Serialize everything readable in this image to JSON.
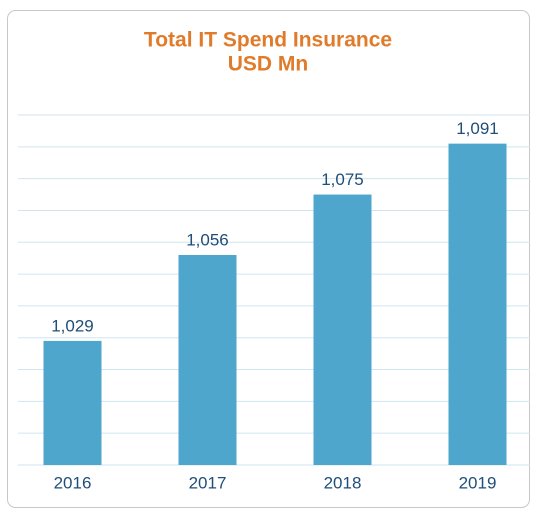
{
  "chart_data": {
    "type": "bar",
    "title": "Total IT Spend Insurance",
    "subtitle": "USD Mn",
    "categories": [
      "2016",
      "2017",
      "2018",
      "2019"
    ],
    "values": [
      1029,
      1056,
      1075,
      1091
    ],
    "value_labels": [
      "1,029",
      "1,056",
      "1,075",
      "1,091"
    ],
    "color": "#4fa6cc",
    "ylim": [
      990,
      1100
    ],
    "yticks": [
      990,
      1000,
      1010,
      1020,
      1030,
      1040,
      1050,
      1060,
      1070,
      1080,
      1090,
      1100
    ],
    "grid": true
  }
}
